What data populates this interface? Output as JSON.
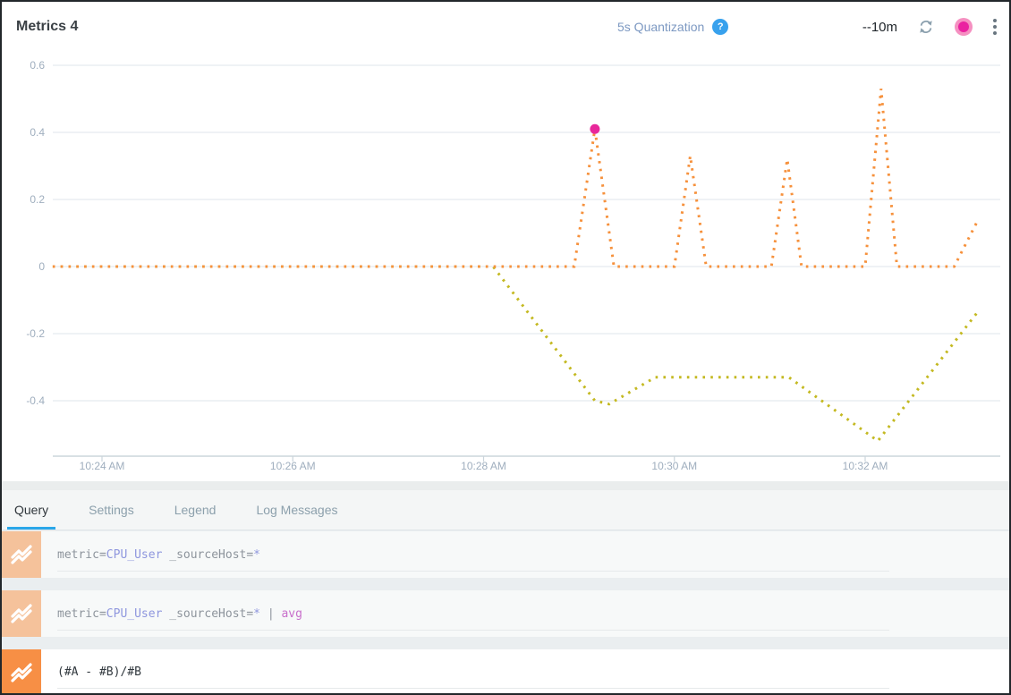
{
  "header": {
    "title": "Metrics 4",
    "quantization_label": "5s Quantization",
    "help_icon": "?",
    "time_range": "--10m",
    "icons": [
      "refresh-icon",
      "record-button",
      "kebab-menu-icon"
    ]
  },
  "chart_data": {
    "type": "line",
    "style": "dotted",
    "title": "",
    "xlabel": "",
    "ylabel": "",
    "grid": true,
    "legend_position": "none",
    "x_tick_labels": [
      "10:24 AM",
      "10:26 AM",
      "10:28 AM",
      "10:30 AM",
      "10:32 AM"
    ],
    "y_tick_labels": [
      "0.6",
      "0.4",
      "0.2",
      "0",
      "-0.2",
      "-0.4"
    ],
    "y_tick_values": [
      0.6,
      0.4,
      0.2,
      0,
      -0.2,
      -0.4
    ],
    "ylim": [
      -0.58,
      0.64
    ],
    "x_range": [
      "10:23:29 AM",
      "10:33:10 AM"
    ],
    "series": [
      {
        "name": "series-olive",
        "color": "#C4B921",
        "points": [
          [
            "10:23:29",
            0
          ],
          [
            "10:28:06",
            0
          ],
          [
            "10:29:10",
            -0.4
          ],
          [
            "10:29:19",
            -0.41
          ],
          [
            "10:29:48",
            -0.33
          ],
          [
            "10:31:12",
            -0.33
          ],
          [
            "10:32:08",
            -0.52
          ],
          [
            "10:33:10",
            -0.14
          ]
        ]
      },
      {
        "name": "series-orange",
        "color": "#F6913C",
        "points": [
          [
            "10:23:29",
            0
          ],
          [
            "10:28:57",
            0
          ],
          [
            "10:29:10",
            0.41
          ],
          [
            "10:29:22",
            0
          ],
          [
            "10:30:00",
            0
          ],
          [
            "10:30:10",
            0.33
          ],
          [
            "10:30:20",
            0
          ],
          [
            "10:31:01",
            0
          ],
          [
            "10:31:11",
            0.32
          ],
          [
            "10:31:20",
            0
          ],
          [
            "10:32:00",
            0
          ],
          [
            "10:32:10",
            0.53
          ],
          [
            "10:32:20",
            0
          ],
          [
            "10:32:56",
            0
          ],
          [
            "10:33:10",
            0.13
          ]
        ]
      }
    ],
    "highlight_point": {
      "series": "series-orange",
      "time": "10:29:10",
      "value": 0.41,
      "color": "#E8289B"
    }
  },
  "tabs": [
    {
      "label": "Query",
      "active": true
    },
    {
      "label": "Settings",
      "active": false
    },
    {
      "label": "Legend",
      "active": false
    },
    {
      "label": "Log Messages",
      "active": false
    }
  ],
  "queries": [
    {
      "row": "A",
      "icon": "line-chart-icon",
      "icon_color": "#F5C29B",
      "tokens": [
        {
          "t": "metric=",
          "c": "plain"
        },
        {
          "t": "CPU_User",
          "c": "field"
        },
        {
          "t": " _sourceHost=",
          "c": "plain"
        },
        {
          "t": "*",
          "c": "field"
        }
      ]
    },
    {
      "row": "B",
      "icon": "line-chart-icon",
      "icon_color": "#F5C29B",
      "tokens": [
        {
          "t": "metric=",
          "c": "plain"
        },
        {
          "t": "CPU_User",
          "c": "field"
        },
        {
          "t": " _sourceHost=",
          "c": "plain"
        },
        {
          "t": "*",
          "c": "field"
        },
        {
          "t": " | ",
          "c": "plain"
        },
        {
          "t": "avg",
          "c": "op"
        }
      ]
    },
    {
      "row": "C",
      "icon": "line-chart-icon",
      "icon_color": "#F78F45",
      "tokens": [
        {
          "t": "(#A - #B)/#B",
          "c": "dark"
        }
      ]
    }
  ],
  "colors": {
    "accent_blue": "#2BA7E9",
    "help_blue": "#38A1ED",
    "record_pink": "#EA22A0",
    "series_orange": "#F6913C",
    "series_olive": "#C4B921",
    "highlight_pink": "#E8289B",
    "tokens": {
      "plain": "#8D949C",
      "field": "#8F97DE",
      "op": "#C86FCB",
      "dark": "#31383E"
    }
  }
}
